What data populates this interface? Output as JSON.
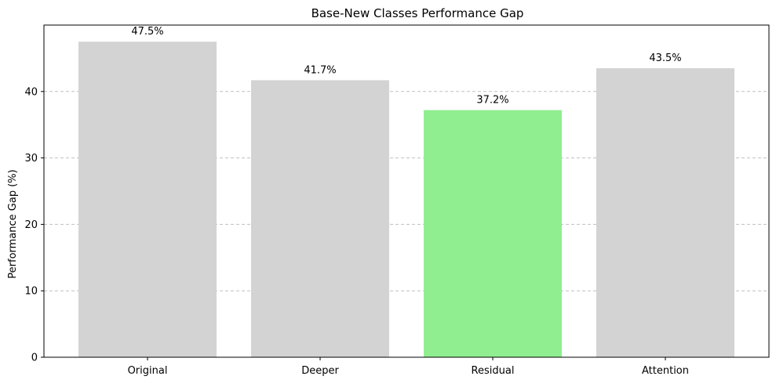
{
  "chart_data": {
    "type": "bar",
    "title": "Base-New Classes Performance Gap",
    "xlabel": "",
    "ylabel": "Performance Gap (%)",
    "categories": [
      "Original",
      "Deeper",
      "Residual",
      "Attention"
    ],
    "values": [
      47.5,
      41.7,
      37.2,
      43.5
    ],
    "value_labels": [
      "47.5%",
      "41.7%",
      "37.2%",
      "43.5%"
    ],
    "bar_colors": [
      "#d3d3d3",
      "#d3d3d3",
      "#90ee90",
      "#d3d3d3"
    ],
    "ylim": [
      0,
      50
    ],
    "yticks": [
      0,
      10,
      20,
      30,
      40
    ],
    "grid": "y-dashed",
    "legend": "none"
  }
}
